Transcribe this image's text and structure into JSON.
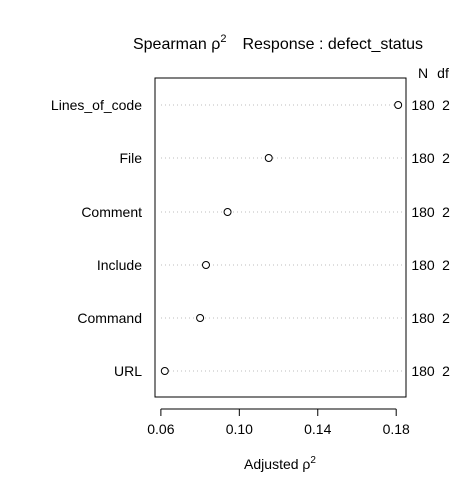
{
  "chart_data": {
    "type": "scatter",
    "title": "Spearman ρ²    Response : defect_status",
    "title_main": "Spearman ρ",
    "title_main_sup": "2",
    "title_response": "Response : defect_status",
    "xlabel": "Adjusted ρ",
    "xlabel_sup": "2",
    "xlim": [
      0.057,
      0.185
    ],
    "xticks": [
      0.06,
      0.1,
      0.14,
      0.18
    ],
    "xtick_labels": [
      "0.06",
      "0.10",
      "0.14",
      "0.18"
    ],
    "columns": [
      "N",
      "df"
    ],
    "grid": "dotted horizontal leaders",
    "rows": [
      {
        "label": "Lines_of_code",
        "value": 0.181,
        "N": "180",
        "df": "2"
      },
      {
        "label": "File",
        "value": 0.115,
        "N": "180",
        "df": "2"
      },
      {
        "label": "Comment",
        "value": 0.094,
        "N": "180",
        "df": "2"
      },
      {
        "label": "Include",
        "value": 0.083,
        "N": "180",
        "df": "2"
      },
      {
        "label": "Command",
        "value": 0.08,
        "N": "180",
        "df": "2"
      },
      {
        "label": "URL",
        "value": 0.062,
        "N": "180",
        "df": "2"
      }
    ]
  }
}
